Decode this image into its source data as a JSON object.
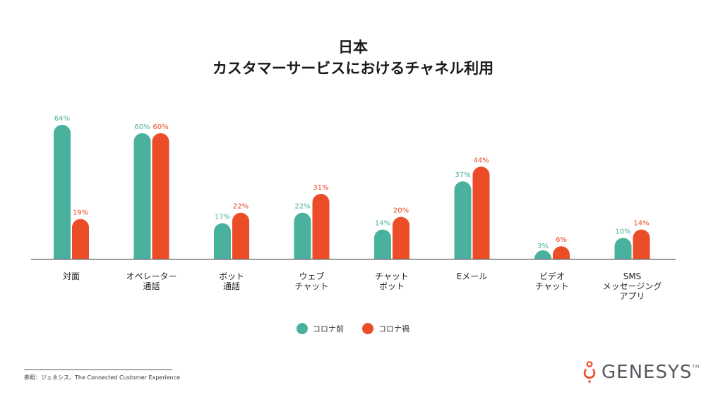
{
  "chart_data": {
    "type": "bar",
    "title": [
      "日本",
      "カスタマーサービスにおけるチャネル利用"
    ],
    "categories": [
      [
        "対面"
      ],
      [
        "オペレーター",
        "通話"
      ],
      [
        "ボット",
        "通話"
      ],
      [
        "ウェブ",
        "チャット"
      ],
      [
        "チャット",
        "ボット"
      ],
      [
        "Eメール"
      ],
      [
        "ビデオ",
        "チャット"
      ],
      [
        "SMS",
        "メッセージング",
        "アプリ"
      ]
    ],
    "series": [
      {
        "name": "コロナ前",
        "color": "#4BB19F",
        "values": [
          64,
          60,
          17,
          22,
          14,
          37,
          3,
          10
        ]
      },
      {
        "name": "コロナ禍",
        "color": "#EB4D28",
        "values": [
          19,
          60,
          22,
          31,
          20,
          44,
          6,
          14
        ]
      }
    ],
    "value_suffix": "%",
    "ylim": [
      0,
      64
    ],
    "legend_position": "bottom-center",
    "grid": false
  },
  "legend": {
    "before": "コロナ前",
    "during": "コロナ禍"
  },
  "source": "参照：ジェネシス、The Connected Customer Experience",
  "logo": {
    "text": "GENESYS",
    "tm": "TM",
    "color": "#EB4D28"
  }
}
